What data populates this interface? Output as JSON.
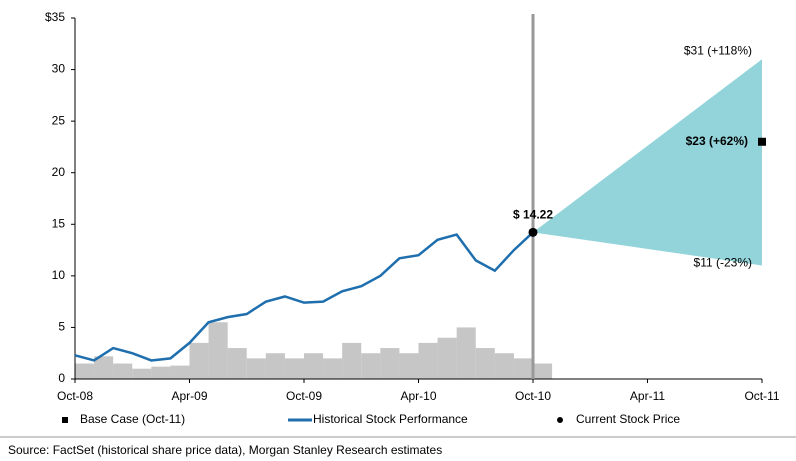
{
  "chart_data": {
    "type": "line",
    "x": [
      "Oct-08",
      "Nov-08",
      "Dec-08",
      "Jan-09",
      "Feb-09",
      "Mar-09",
      "Apr-09",
      "May-09",
      "Jun-09",
      "Jul-09",
      "Aug-09",
      "Sep-09",
      "Oct-09",
      "Nov-09",
      "Dec-09",
      "Jan-10",
      "Feb-10",
      "Mar-10",
      "Apr-10",
      "May-10",
      "Jun-10",
      "Jul-10",
      "Aug-10",
      "Sep-10",
      "Oct-10",
      "Nov-10",
      "Dec-10",
      "Jan-11",
      "Feb-11",
      "Mar-11",
      "Apr-11",
      "May-11",
      "Jun-11",
      "Jul-11",
      "Aug-11",
      "Sep-11",
      "Oct-11"
    ],
    "xticks": [
      "Oct-08",
      "Apr-09",
      "Oct-09",
      "Apr-10",
      "Oct-10",
      "Apr-11",
      "Oct-11"
    ],
    "ylim": [
      0,
      35
    ],
    "yticks": [
      0,
      5,
      10,
      15,
      20,
      25,
      30,
      {
        "value": 35,
        "label": "$35"
      }
    ],
    "series": [
      {
        "name": "Historical Stock Performance",
        "color": "#1f6fae",
        "values": [
          2.3,
          1.8,
          3.0,
          2.5,
          1.8,
          2.0,
          3.5,
          5.5,
          6.0,
          6.3,
          7.5,
          8.0,
          7.4,
          7.5,
          8.5,
          9.0,
          10.0,
          11.7,
          12.0,
          13.5,
          14.0,
          11.5,
          10.5,
          12.5,
          14.22,
          null,
          null,
          null,
          null,
          null,
          null,
          null,
          null,
          null,
          null,
          null,
          null
        ]
      }
    ],
    "volume": {
      "color": "#b8b8b8",
      "values": [
        1.5,
        2.2,
        1.5,
        1.0,
        1.2,
        1.3,
        3.5,
        5.5,
        3.0,
        2.0,
        2.5,
        2.0,
        2.5,
        2.0,
        3.5,
        2.5,
        3.0,
        2.5,
        3.5,
        4.0,
        5.0,
        3.0,
        2.5,
        2.0,
        1.5,
        null,
        null,
        null,
        null,
        null,
        null,
        null,
        null,
        null,
        null,
        null,
        null
      ]
    },
    "current": {
      "name": "Current Stock Price",
      "x": "Oct-10",
      "value": 14.22,
      "value_label": "$ 14.22"
    },
    "projection": {
      "name": "Base Case  (Oct-11)",
      "x": "Oct-11",
      "color": "#86cfd6",
      "high": 31,
      "high_label": "$31 (+118%)",
      "base": 23,
      "base_label": "$23 (+62%)",
      "low": 11,
      "low_label": "$11 (-23%)"
    },
    "source": "Source: FactSet (historical share price data), Morgan Stanley Research estimates"
  }
}
